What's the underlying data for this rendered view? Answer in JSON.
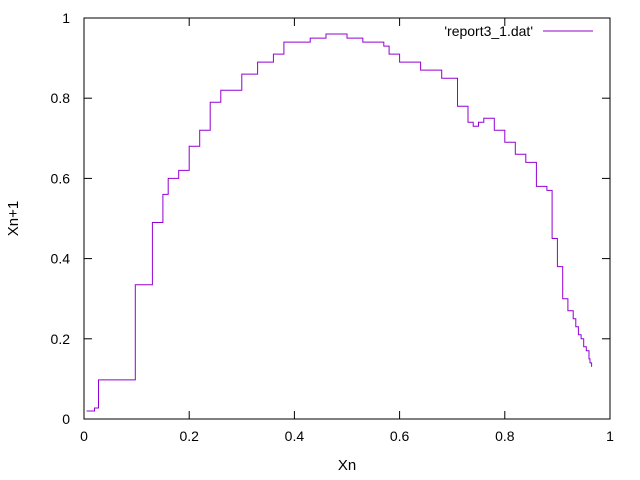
{
  "chart_data": {
    "type": "line",
    "title": "",
    "xlabel": "Xn",
    "ylabel": "Xn+1",
    "xlim": [
      0,
      1
    ],
    "ylim": [
      0,
      1
    ],
    "x_ticks": [
      "0",
      "0.2",
      "0.4",
      "0.6",
      "0.8",
      "1"
    ],
    "y_ticks": [
      "0",
      "0.2",
      "0.4",
      "0.6",
      "0.8",
      "1"
    ],
    "grid": false,
    "legend_position": "top-right",
    "series": [
      {
        "name": "'report3_1.dat'",
        "color": "#9400d3",
        "style": "cobweb (steps)",
        "x": [
          0.005,
          0.02,
          0.0275,
          0.0975,
          0.13,
          0.13,
          0.15,
          0.15,
          0.16,
          0.16,
          0.18,
          0.18,
          0.2,
          0.2,
          0.22,
          0.22,
          0.24,
          0.24,
          0.26,
          0.27,
          0.3,
          0.3,
          0.33,
          0.33,
          0.36,
          0.38,
          0.38,
          0.41,
          0.43,
          0.46,
          0.47,
          0.5,
          0.53,
          0.57,
          0.58,
          0.6,
          0.64,
          0.68,
          0.71,
          0.73,
          0.74,
          0.75,
          0.76,
          0.78,
          0.8,
          0.82,
          0.84,
          0.86,
          0.88,
          0.89,
          0.9,
          0.91,
          0.92,
          0.93,
          0.935,
          0.94,
          0.945,
          0.95,
          0.955,
          0.96,
          0.962,
          0.965
        ],
        "y": [
          0.02,
          0.0275,
          0.0975,
          0.335,
          0.43,
          0.49,
          0.52,
          0.56,
          0.58,
          0.6,
          0.6,
          0.62,
          0.65,
          0.68,
          0.68,
          0.72,
          0.75,
          0.79,
          0.82,
          0.82,
          0.82,
          0.86,
          0.86,
          0.89,
          0.91,
          0.93,
          0.94,
          0.94,
          0.95,
          0.96,
          0.96,
          0.95,
          0.94,
          0.93,
          0.91,
          0.89,
          0.87,
          0.85,
          0.78,
          0.74,
          0.73,
          0.74,
          0.75,
          0.72,
          0.69,
          0.66,
          0.64,
          0.58,
          0.57,
          0.45,
          0.38,
          0.3,
          0.27,
          0.25,
          0.23,
          0.21,
          0.2,
          0.18,
          0.17,
          0.15,
          0.14,
          0.13
        ]
      }
    ]
  }
}
